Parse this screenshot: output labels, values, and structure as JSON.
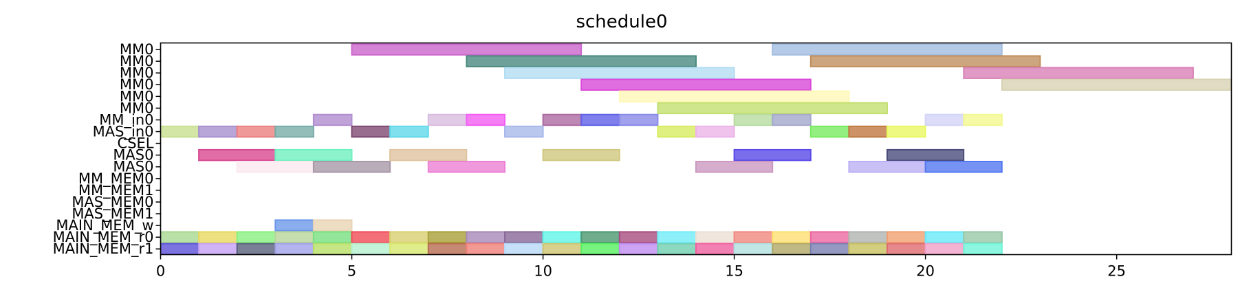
{
  "chart_data": {
    "type": "gantt",
    "title": "schedule0",
    "xlim": [
      0,
      28
    ],
    "x_ticks": [
      0,
      5,
      10,
      15,
      20,
      25
    ],
    "grid": false,
    "lanes": [
      "MM0",
      "MM0",
      "MM0",
      "MM0",
      "MM0",
      "MM0",
      "MM_in0",
      "MAS_in0",
      "CSEL",
      "MAS0",
      "MAS0",
      "MM_MEM0",
      "MM_MEM1",
      "MAS_MEM0",
      "MAS_MEM1",
      "MAIN_MEM_w",
      "MAIN_MEM_r0",
      "MAIN_MEM_r1"
    ],
    "bars": [
      {
        "lane": 0,
        "start": 5,
        "end": 11,
        "color": "#cc66cc"
      },
      {
        "lane": 0,
        "start": 16,
        "end": 22,
        "color": "#a3bde0"
      },
      {
        "lane": 1,
        "start": 8,
        "end": 14,
        "color": "#4a8a80"
      },
      {
        "lane": 1,
        "start": 17,
        "end": 23,
        "color": "#c18e5e"
      },
      {
        "lane": 2,
        "start": 9,
        "end": 15,
        "color": "#b3ddf2"
      },
      {
        "lane": 2,
        "start": 21,
        "end": 27,
        "color": "#d981b8"
      },
      {
        "lane": 3,
        "start": 11,
        "end": 17,
        "color": "#d94ad9"
      },
      {
        "lane": 3,
        "start": 22,
        "end": 29,
        "color": "#d8d2b4"
      },
      {
        "lane": 4,
        "start": 12,
        "end": 18,
        "color": "#fff8b8"
      },
      {
        "lane": 5,
        "start": 13,
        "end": 19,
        "color": "#c3e070"
      },
      {
        "lane": 6,
        "start": 4,
        "end": 5,
        "color": "#b08dd0"
      },
      {
        "lane": 6,
        "start": 7,
        "end": 8,
        "color": "#d8bde0"
      },
      {
        "lane": 6,
        "start": 8,
        "end": 9,
        "color": "#f25ef2"
      },
      {
        "lane": 6,
        "start": 10,
        "end": 11,
        "color": "#ac6aa0"
      },
      {
        "lane": 6,
        "start": 11,
        "end": 12,
        "color": "#6060e8"
      },
      {
        "lane": 6,
        "start": 12,
        "end": 13,
        "color": "#8a8ae8"
      },
      {
        "lane": 6,
        "start": 15,
        "end": 16,
        "color": "#b8dca0"
      },
      {
        "lane": 6,
        "start": 16,
        "end": 17,
        "color": "#a4a8cc"
      },
      {
        "lane": 6,
        "start": 20,
        "end": 21,
        "color": "#d4d4f8"
      },
      {
        "lane": 6,
        "start": 21,
        "end": 22,
        "color": "#f4f890"
      },
      {
        "lane": 7,
        "start": 0,
        "end": 1,
        "color": "#c8e090"
      },
      {
        "lane": 7,
        "start": 1,
        "end": 2,
        "color": "#a890d0"
      },
      {
        "lane": 7,
        "start": 2,
        "end": 3,
        "color": "#ec8080"
      },
      {
        "lane": 7,
        "start": 3,
        "end": 4,
        "color": "#78aca8"
      },
      {
        "lane": 7,
        "start": 5,
        "end": 6,
        "color": "#7e4870"
      },
      {
        "lane": 7,
        "start": 6,
        "end": 7,
        "color": "#60d8e8"
      },
      {
        "lane": 7,
        "start": 9,
        "end": 10,
        "color": "#a8b8e8"
      },
      {
        "lane": 7,
        "start": 13,
        "end": 14,
        "color": "#d8ec60"
      },
      {
        "lane": 7,
        "start": 14,
        "end": 15,
        "color": "#ecb4e8"
      },
      {
        "lane": 7,
        "start": 17,
        "end": 18,
        "color": "#78ec60"
      },
      {
        "lane": 7,
        "start": 18,
        "end": 19,
        "color": "#c07840"
      },
      {
        "lane": 7,
        "start": 19,
        "end": 20,
        "color": "#e8f860"
      },
      {
        "lane": 9,
        "start": 1,
        "end": 3,
        "color": "#d84890"
      },
      {
        "lane": 9,
        "start": 3,
        "end": 5,
        "color": "#70f0c0"
      },
      {
        "lane": 9,
        "start": 6,
        "end": 8,
        "color": "#e0c4a0"
      },
      {
        "lane": 9,
        "start": 10,
        "end": 12,
        "color": "#d0c880"
      },
      {
        "lane": 9,
        "start": 15,
        "end": 17,
        "color": "#5a4ae8"
      },
      {
        "lane": 9,
        "start": 19,
        "end": 21,
        "color": "#4a4c7a"
      },
      {
        "lane": 10,
        "start": 2,
        "end": 4,
        "color": "#fbe8f0"
      },
      {
        "lane": 10,
        "start": 4,
        "end": 6,
        "color": "#a898a8"
      },
      {
        "lane": 10,
        "start": 7,
        "end": 9,
        "color": "#ec80d4"
      },
      {
        "lane": 10,
        "start": 14,
        "end": 16,
        "color": "#cc98c0"
      },
      {
        "lane": 10,
        "start": 18,
        "end": 20,
        "color": "#bcb0f4"
      },
      {
        "lane": 10,
        "start": 20,
        "end": 22,
        "color": "#5478f0"
      },
      {
        "lane": 15,
        "start": 3,
        "end": 4,
        "color": "#6c98e8"
      },
      {
        "lane": 15,
        "start": 4,
        "end": 5,
        "color": "#e8d4b4"
      },
      {
        "lane": 16,
        "start": 0,
        "end": 1,
        "color": "#a8d890"
      },
      {
        "lane": 16,
        "start": 1,
        "end": 2,
        "color": "#e8d860"
      },
      {
        "lane": 16,
        "start": 2,
        "end": 3,
        "color": "#88f080"
      },
      {
        "lane": 16,
        "start": 3,
        "end": 4,
        "color": "#b8d498"
      },
      {
        "lane": 16,
        "start": 4,
        "end": 5,
        "color": "#78e080"
      },
      {
        "lane": 16,
        "start": 5,
        "end": 6,
        "color": "#f04c58"
      },
      {
        "lane": 16,
        "start": 6,
        "end": 7,
        "color": "#d8d070"
      },
      {
        "lane": 16,
        "start": 7,
        "end": 8,
        "color": "#a8a038"
      },
      {
        "lane": 16,
        "start": 8,
        "end": 9,
        "color": "#a888b8"
      },
      {
        "lane": 16,
        "start": 9,
        "end": 10,
        "color": "#886898"
      },
      {
        "lane": 16,
        "start": 10,
        "end": 11,
        "color": "#60f4e8"
      },
      {
        "lane": 16,
        "start": 11,
        "end": 12,
        "color": "#4c9870"
      },
      {
        "lane": 16,
        "start": 12,
        "end": 13,
        "color": "#a84c80"
      },
      {
        "lane": 16,
        "start": 13,
        "end": 14,
        "color": "#70ecf8"
      },
      {
        "lane": 16,
        "start": 14,
        "end": 15,
        "color": "#ece0d4"
      },
      {
        "lane": 16,
        "start": 15,
        "end": 16,
        "color": "#f08880"
      },
      {
        "lane": 16,
        "start": 16,
        "end": 17,
        "color": "#fce070"
      },
      {
        "lane": 16,
        "start": 17,
        "end": 18,
        "color": "#ec68a0"
      },
      {
        "lane": 16,
        "start": 18,
        "end": 19,
        "color": "#b0b4b0"
      },
      {
        "lane": 16,
        "start": 19,
        "end": 20,
        "color": "#f0a070"
      },
      {
        "lane": 16,
        "start": 20,
        "end": 21,
        "color": "#68e8f8"
      },
      {
        "lane": 16,
        "start": 21,
        "end": 22,
        "color": "#98c8a8"
      },
      {
        "lane": 17,
        "start": 0,
        "end": 1,
        "color": "#5c50d8"
      },
      {
        "lane": 17,
        "start": 1,
        "end": 2,
        "color": "#c4a0f4"
      },
      {
        "lane": 17,
        "start": 2,
        "end": 3,
        "color": "#58607c"
      },
      {
        "lane": 17,
        "start": 3,
        "end": 4,
        "color": "#a0a0e8"
      },
      {
        "lane": 17,
        "start": 4,
        "end": 5,
        "color": "#b8e068"
      },
      {
        "lane": 17,
        "start": 5,
        "end": 6,
        "color": "#b4f0d0"
      },
      {
        "lane": 17,
        "start": 6,
        "end": 7,
        "color": "#d8e870"
      },
      {
        "lane": 17,
        "start": 7,
        "end": 8,
        "color": "#b86c50"
      },
      {
        "lane": 17,
        "start": 8,
        "end": 9,
        "color": "#f08078"
      },
      {
        "lane": 17,
        "start": 9,
        "end": 10,
        "color": "#b8d8f8"
      },
      {
        "lane": 17,
        "start": 10,
        "end": 11,
        "color": "#d0c470"
      },
      {
        "lane": 17,
        "start": 11,
        "end": 12,
        "color": "#58f060"
      },
      {
        "lane": 17,
        "start": 12,
        "end": 13,
        "color": "#c08cf0"
      },
      {
        "lane": 17,
        "start": 13,
        "end": 14,
        "color": "#70d0b0"
      },
      {
        "lane": 17,
        "start": 14,
        "end": 15,
        "color": "#f060a0"
      },
      {
        "lane": 17,
        "start": 15,
        "end": 16,
        "color": "#b0e0e0"
      },
      {
        "lane": 17,
        "start": 16,
        "end": 17,
        "color": "#b0a868"
      },
      {
        "lane": 17,
        "start": 17,
        "end": 18,
        "color": "#7880b0"
      },
      {
        "lane": 17,
        "start": 18,
        "end": 19,
        "color": "#c8c060"
      },
      {
        "lane": 17,
        "start": 19,
        "end": 20,
        "color": "#e06c70"
      },
      {
        "lane": 17,
        "start": 20,
        "end": 21,
        "color": "#f0a0c8"
      },
      {
        "lane": 17,
        "start": 21,
        "end": 22,
        "color": "#70f4d8"
      }
    ]
  }
}
